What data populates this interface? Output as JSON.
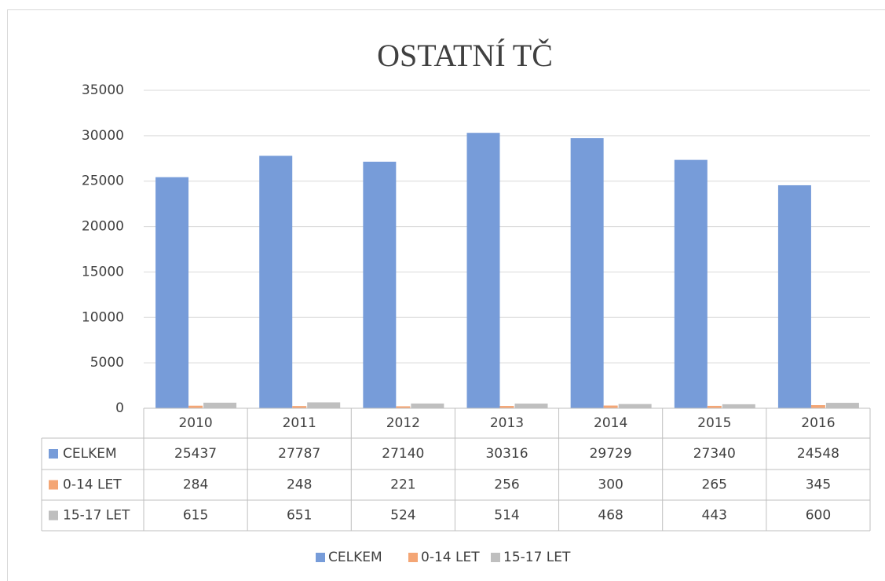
{
  "chart_data": {
    "type": "bar",
    "title": "OSTATNÍ TČ",
    "categories": [
      "2010",
      "2011",
      "2012",
      "2013",
      "2014",
      "2015",
      "2016"
    ],
    "series": [
      {
        "name": "CELKEM",
        "color": "#779cd9",
        "values": [
          25437,
          27787,
          27140,
          30316,
          29729,
          27340,
          24548
        ]
      },
      {
        "name": "0-14 LET",
        "color": "#f4a675",
        "values": [
          284,
          248,
          221,
          256,
          300,
          265,
          345
        ]
      },
      {
        "name": "15-17 LET",
        "color": "#bfbfbf",
        "values": [
          615,
          651,
          524,
          514,
          468,
          443,
          600
        ]
      }
    ],
    "ylim": [
      0,
      35000
    ],
    "yticks": [
      0,
      5000,
      10000,
      15000,
      20000,
      25000,
      30000,
      35000
    ],
    "grid": true,
    "legend": "bottom",
    "data_table": true
  }
}
